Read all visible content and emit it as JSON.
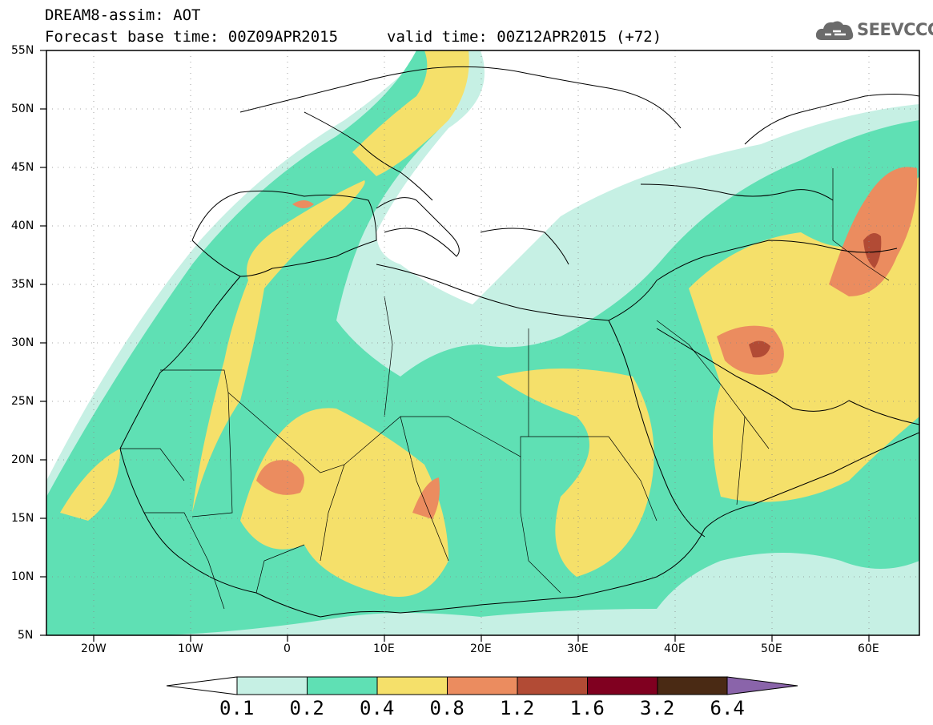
{
  "title": {
    "line1": "DREAM8-assim: AOT",
    "line2": "Forecast base time: 00Z09APR2015",
    "valid": "valid time: 00Z12APR2015 (+72)"
  },
  "logo": {
    "text": "SEEVCCC",
    "icon": "cloud-icon",
    "color": "#6b6b6b"
  },
  "map": {
    "lat_labels": [
      "55N",
      "50N",
      "45N",
      "40N",
      "35N",
      "30N",
      "25N",
      "20N",
      "15N",
      "10N",
      "5N"
    ],
    "lon_labels": [
      "20W",
      "10W",
      "0",
      "10E",
      "20E",
      "30E",
      "40E",
      "50E",
      "60E"
    ],
    "lon_range": [
      -25,
      65
    ],
    "lat_range": [
      5,
      55
    ]
  },
  "colorbar": {
    "labels": [
      "0.1",
      "0.2",
      "0.4",
      "0.8",
      "1.2",
      "1.6",
      "3.2",
      "6.4"
    ],
    "colors": [
      "#c6f0e4",
      "#5fe0b4",
      "#f5e06a",
      "#eb8c5f",
      "#b24b35",
      "#800020",
      "#4a2a14"
    ],
    "under_color": "#ffffff",
    "over_color": "#8a64aa"
  }
}
